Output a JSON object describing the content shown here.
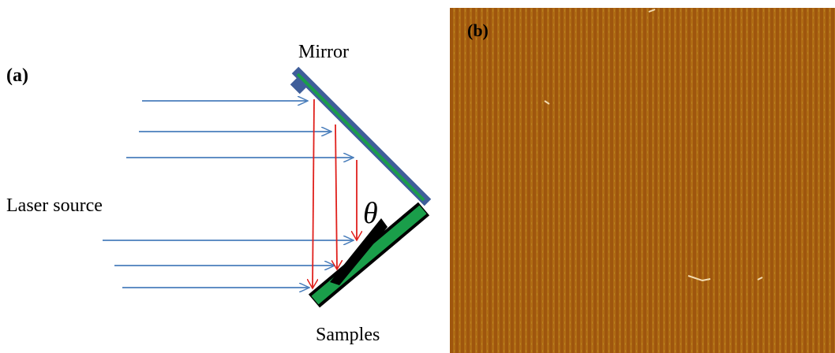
{
  "panel_a": {
    "label": "(a)",
    "mirror": "Mirror",
    "source": "Laser source",
    "angle": "θ",
    "samples": "Samples"
  },
  "panel_b": {
    "label": "(b)"
  }
}
